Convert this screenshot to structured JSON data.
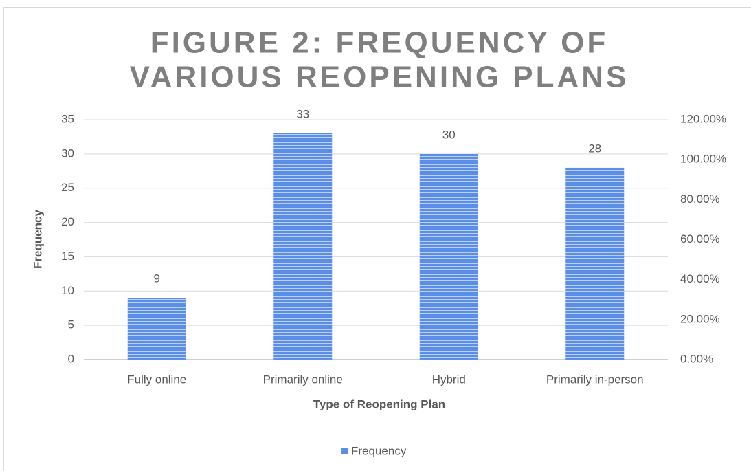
{
  "chart_data": {
    "type": "bar",
    "title": [
      "FIGURE 2: FREQUENCY OF",
      "VARIOUS REOPENING PLANS"
    ],
    "x_label": "Type of Reopening Plan",
    "y_label": "Frequency",
    "categories": [
      "Fully online",
      "Primarily online",
      "Hybrid",
      "Primarily in-person"
    ],
    "series": [
      {
        "name": "Frequency",
        "color": "#5b8ee6",
        "values": [
          9,
          33,
          30,
          28
        ]
      }
    ],
    "ylim": [
      0,
      35
    ],
    "yticks": [
      0,
      5,
      10,
      15,
      20,
      25,
      30,
      35
    ],
    "y2lim": [
      0,
      120
    ],
    "y2ticks": [
      {
        "value": 0,
        "label": "0.00%"
      },
      {
        "value": 20,
        "label": "20.00%"
      },
      {
        "value": 40,
        "label": "40.00%"
      },
      {
        "value": 60,
        "label": "60.00%"
      },
      {
        "value": 80,
        "label": "80.00%"
      },
      {
        "value": 100,
        "label": "100.00%"
      },
      {
        "value": 120,
        "label": "120.00%"
      }
    ],
    "grid": true,
    "legend": "bottom"
  }
}
